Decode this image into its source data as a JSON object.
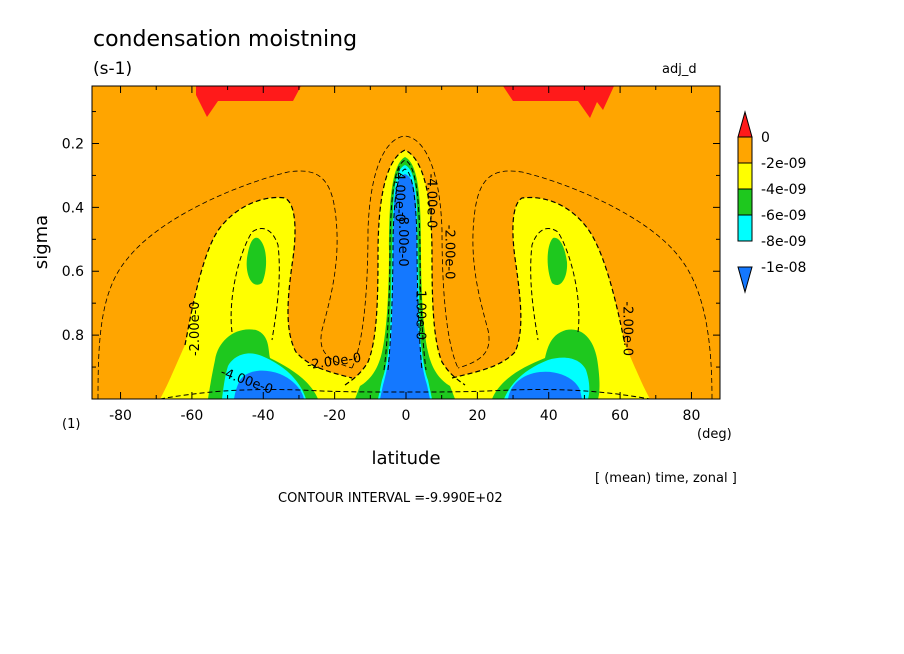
{
  "title": "condensation moistning",
  "units": "(s-1)",
  "experiment": "adj_d",
  "panel_label": "(1)",
  "x_unit": "(deg)",
  "averaging": "[ (mean) time, zonal ]",
  "contour_interval": "CONTOUR INTERVAL =-9.990E+02",
  "colors": {
    "lvl0": "#ff1a1a",
    "lvl1": "#ffa500",
    "lvl2": "#ffff00",
    "lvl3": "#1ec81e",
    "lvl4": "#00ffff",
    "lvl5": "#1478ff"
  },
  "chart_data": {
    "type": "heatmap",
    "title": "condensation moistning",
    "xlabel": "latitude",
    "ylabel": "sigma",
    "xlim": [
      -88,
      88
    ],
    "ylim": [
      1.0,
      0.02
    ],
    "y_inverted": true,
    "x_ticks": [
      -80,
      -60,
      -40,
      -20,
      0,
      20,
      40,
      60,
      80
    ],
    "y_ticks": [
      0.2,
      0.4,
      0.6,
      0.8
    ],
    "colorbar": {
      "labels": [
        "0",
        "-2e-09",
        "-4e-09",
        "-6e-09",
        "-8e-09",
        "-1e-08"
      ],
      "levels": [
        0,
        -2e-09,
        -4e-09,
        -6e-09,
        -8e-09,
        -1e-08
      ],
      "colors": [
        "#ff1a1a",
        "#ffa500",
        "#ffff00",
        "#1ec81e",
        "#00ffff",
        "#1478ff"
      ]
    },
    "contour_labels": [
      {
        "text": "-2.00e-0",
        "lat": -58,
        "sigma": 0.78,
        "angle": -90
      },
      {
        "text": "-2.00e-0",
        "lat": -20,
        "sigma": 0.895,
        "angle": -8
      },
      {
        "text": "-4.00e-0",
        "lat": -45,
        "sigma": 0.955,
        "angle": 20
      },
      {
        "text": "-8.00e-0",
        "lat": -2,
        "sigma": 0.5,
        "angle": 90
      },
      {
        "text": "-1.00e-0",
        "lat": 3,
        "sigma": 0.73,
        "angle": 90
      },
      {
        "text": "-4.00e-0",
        "lat": -3,
        "sigma": 0.36,
        "angle": 90
      },
      {
        "text": "-4.00e-0",
        "lat": 6,
        "sigma": 0.38,
        "angle": 90
      },
      {
        "text": "-2.00e-0",
        "lat": 11,
        "sigma": 0.54,
        "angle": 90
      },
      {
        "text": "-2.00e-0",
        "lat": 61,
        "sigma": 0.78,
        "angle": 90
      }
    ]
  }
}
